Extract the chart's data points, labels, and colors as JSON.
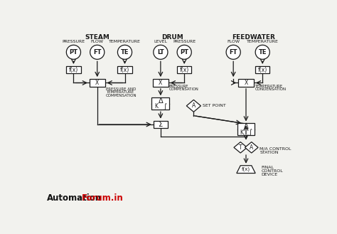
{
  "bg_color": "#f2f2ee",
  "line_color": "#1a1a1a",
  "title_steam": "STEAM",
  "title_drum": "DRUM",
  "title_feedwater": "FEEDWATER",
  "label_pressure": "PRESSURE",
  "label_flow": "FLOW",
  "label_temperature": "TEMPERATURE",
  "label_level": "LEVEL",
  "automation_black": "#111111",
  "automation_red": "#cc0000"
}
